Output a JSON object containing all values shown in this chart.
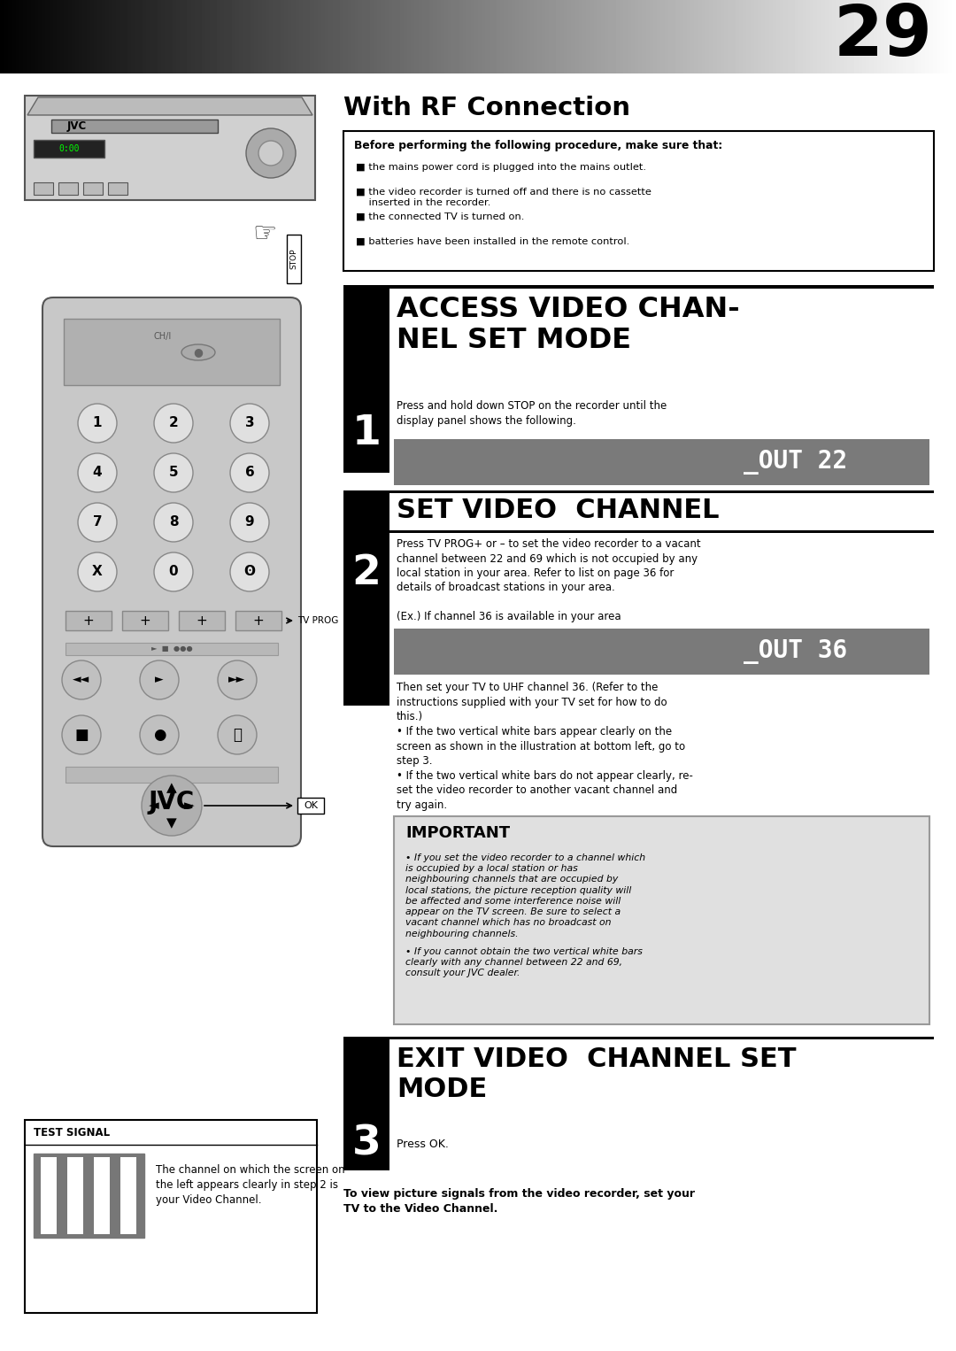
{
  "page_number": "29",
  "title": "With RF Connection",
  "before_box_title": "Before performing the following procedure, make sure that:",
  "before_bullets": [
    "the mains power cord is plugged into the mains outlet.",
    "the video recorder is turned off and there is no cassette\n    inserted in the recorder.",
    "the connected TV is turned on.",
    "batteries have been installed in the remote control."
  ],
  "section1_header": "ACCESS VIDEO CHAN-\nNEL SET MODE",
  "step1_text": "Press and hold down STOP on the recorder until the\ndisplay panel shows the following.",
  "display1_text": "_OUT 22",
  "section2_header": "SET VIDEO  CHANNEL",
  "step2_text_a": "Press TV PROG+ or – to set the video recorder to a vacant\nchannel between 22 and 69 which is not occupied by any\nlocal station in your area. Refer to list on page 36 for\ndetails of broadcast stations in your area.",
  "step2_text_b": "(Ex.) If channel 36 is available in your area",
  "display2_text": "_OUT 36",
  "step2_text_c": "Then set your TV to UHF channel 36. (Refer to the\ninstructions supplied with your TV set for how to do\nthis.)",
  "bullet1": "If the two vertical white bars appear clearly on the\nscreen as shown in the illustration at bottom left, go to\nstep 3.",
  "bullet2": "If the two vertical white bars do not appear clearly, re-\nset the video recorder to another vacant channel and\ntry again.",
  "important_header": "IMPORTANT",
  "important_bullet1": "If you set the video recorder to a channel which\nis occupied by a local station or has\nneighbouring channels that are occupied by\nlocal stations, the picture reception quality will\nbe affected and some interference noise will\nappear on the TV screen. Be sure to select a\nvacant channel which has no broadcast on\nneighbouring channels.",
  "important_bullet2": "If you cannot obtain the two vertical white bars\nclearly with any channel between 22 and 69,\nconsult your JVC dealer.",
  "section3_header": "EXIT VIDEO  CHANNEL SET\nMODE",
  "step3_text": "Press OK.",
  "footer_text": "To view picture signals from the video recorder, set your\nTV to the Video Channel.",
  "test_signal_label": "TEST SIGNAL",
  "test_signal_caption": "The channel on which the screen on\nthe left appears clearly in step 2 is\nyour Video Channel.",
  "bg_color": "#ffffff"
}
